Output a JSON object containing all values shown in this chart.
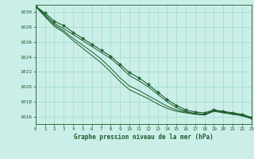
{
  "title": "Graphe pression niveau de la mer (hPa)",
  "background_color": "#cceee8",
  "grid_color": "#99ddcc",
  "line_color": "#1a5c2a",
  "marker_color": "#1a5c2a",
  "xlim": [
    0,
    23
  ],
  "ylim": [
    1015.0,
    1031.0
  ],
  "yticks": [
    1016,
    1018,
    1020,
    1022,
    1024,
    1026,
    1028,
    1030
  ],
  "xticks": [
    0,
    1,
    2,
    3,
    4,
    5,
    6,
    7,
    8,
    9,
    10,
    11,
    12,
    13,
    14,
    15,
    16,
    17,
    18,
    19,
    20,
    21,
    22,
    23
  ],
  "series_marked": [
    1030.8,
    1029.9,
    1028.8,
    1028.2,
    1027.3,
    1026.5,
    1025.7,
    1024.9,
    1024.1,
    1023.0,
    1021.9,
    1021.2,
    1020.3,
    1019.3,
    1018.3,
    1017.5,
    1016.9,
    1016.6,
    1016.5,
    1016.9,
    1016.7,
    1016.5,
    1016.3,
    1015.9
  ],
  "series_plain": [
    [
      1030.8,
      1029.7,
      1028.5,
      1027.8,
      1027.0,
      1026.2,
      1025.4,
      1024.6,
      1023.8,
      1022.7,
      1021.5,
      1020.8,
      1020.0,
      1019.0,
      1018.0,
      1017.2,
      1016.7,
      1016.4,
      1016.3,
      1016.8,
      1016.6,
      1016.4,
      1016.2,
      1015.8
    ],
    [
      1030.8,
      1029.5,
      1028.3,
      1027.5,
      1026.5,
      1025.6,
      1024.7,
      1023.7,
      1022.5,
      1021.2,
      1020.1,
      1019.5,
      1018.8,
      1018.1,
      1017.4,
      1016.9,
      1016.6,
      1016.4,
      1016.3,
      1016.8,
      1016.6,
      1016.4,
      1016.2,
      1015.8
    ],
    [
      1030.8,
      1029.4,
      1028.1,
      1027.3,
      1026.2,
      1025.2,
      1024.2,
      1023.2,
      1022.0,
      1020.7,
      1019.6,
      1019.0,
      1018.4,
      1017.7,
      1017.1,
      1016.7,
      1016.5,
      1016.3,
      1016.2,
      1016.7,
      1016.5,
      1016.3,
      1016.1,
      1015.7
    ]
  ]
}
